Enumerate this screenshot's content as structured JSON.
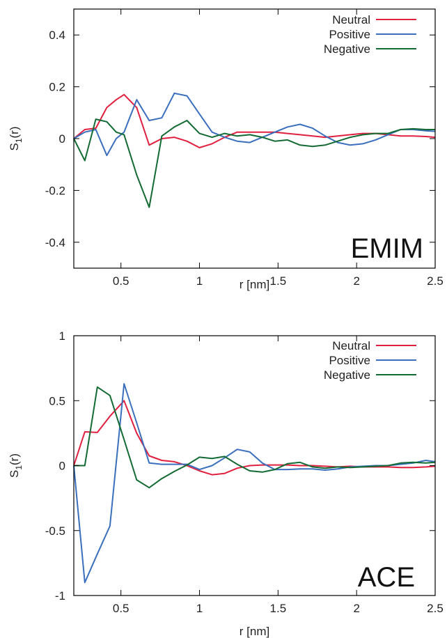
{
  "chart_data": [
    {
      "type": "line",
      "panel_label": "EMIM",
      "xlabel": "r [nm]",
      "ylabel_main": "S",
      "ylabel_sub": "1",
      "ylabel_tail": "(r)",
      "xlim": [
        0.2,
        2.5
      ],
      "ylim": [
        -0.5,
        0.5
      ],
      "xticks": [
        0.5,
        1,
        1.5,
        2,
        2.5
      ],
      "xtick_labels": [
        "0.5",
        "1",
        "1.5",
        "2",
        "2.5"
      ],
      "yticks": [
        -0.4,
        -0.2,
        0,
        0.2,
        0.4
      ],
      "ytick_labels": [
        "-0.4",
        "-0.2",
        "0",
        "0.2",
        "0.4"
      ],
      "legend_position": "top-right",
      "series": [
        {
          "name": "Neutral",
          "color": "#e0203f",
          "x": [
            0.2,
            0.27,
            0.34,
            0.41,
            0.47,
            0.52,
            0.6,
            0.68,
            0.76,
            0.84,
            0.92,
            1.0,
            1.08,
            1.16,
            1.24,
            1.32,
            1.4,
            1.48,
            1.56,
            1.64,
            1.72,
            1.8,
            1.88,
            1.96,
            2.04,
            2.12,
            2.2,
            2.28,
            2.36,
            2.44,
            2.5
          ],
          "y": [
            0.0,
            0.035,
            0.04,
            0.12,
            0.15,
            0.17,
            0.12,
            -0.025,
            0.0,
            0.005,
            -0.01,
            -0.035,
            -0.02,
            0.005,
            0.025,
            0.025,
            0.025,
            0.025,
            0.02,
            0.015,
            0.01,
            0.005,
            0.01,
            0.015,
            0.02,
            0.02,
            0.015,
            0.01,
            0.01,
            0.008,
            0.005
          ]
        },
        {
          "name": "Positive",
          "color": "#3a6fbd",
          "x": [
            0.2,
            0.27,
            0.34,
            0.41,
            0.47,
            0.52,
            0.6,
            0.68,
            0.76,
            0.84,
            0.92,
            1.0,
            1.08,
            1.16,
            1.24,
            1.32,
            1.4,
            1.48,
            1.56,
            1.64,
            1.72,
            1.8,
            1.88,
            1.96,
            2.04,
            2.12,
            2.2,
            2.28,
            2.36,
            2.44,
            2.5
          ],
          "y": [
            0.0,
            0.025,
            0.035,
            -0.065,
            0.0,
            0.025,
            0.15,
            0.07,
            0.08,
            0.175,
            0.165,
            0.095,
            0.025,
            0.005,
            -0.01,
            -0.015,
            0.005,
            0.025,
            0.045,
            0.055,
            0.04,
            0.01,
            -0.015,
            -0.025,
            -0.02,
            -0.005,
            0.015,
            0.035,
            0.035,
            0.03,
            0.028
          ]
        },
        {
          "name": "Negative",
          "color": "#136b33",
          "x": [
            0.2,
            0.27,
            0.34,
            0.41,
            0.47,
            0.52,
            0.6,
            0.68,
            0.76,
            0.84,
            0.92,
            1.0,
            1.08,
            1.16,
            1.24,
            1.32,
            1.4,
            1.48,
            1.56,
            1.64,
            1.72,
            1.8,
            1.88,
            1.96,
            2.04,
            2.12,
            2.2,
            2.28,
            2.36,
            2.44,
            2.5
          ],
          "y": [
            0.0,
            -0.085,
            0.075,
            0.065,
            0.025,
            0.015,
            -0.14,
            -0.265,
            0.01,
            0.045,
            0.07,
            0.02,
            0.005,
            0.02,
            0.01,
            0.015,
            0.005,
            -0.01,
            -0.005,
            -0.025,
            -0.03,
            -0.025,
            -0.01,
            0.005,
            0.015,
            0.02,
            0.02,
            0.035,
            0.038,
            0.035,
            0.035
          ]
        }
      ]
    },
    {
      "type": "line",
      "panel_label": "ACE",
      "xlabel": "r [nm]",
      "ylabel_main": "S",
      "ylabel_sub": "1",
      "ylabel_tail": "(r)",
      "xlim": [
        0.2,
        2.5
      ],
      "ylim": [
        -1,
        1
      ],
      "xticks": [
        0.5,
        1,
        1.5,
        2,
        2.5
      ],
      "xtick_labels": [
        "0.5",
        "1",
        "1.5",
        "2",
        "2.5"
      ],
      "yticks": [
        -1,
        -0.5,
        0,
        0.5,
        1
      ],
      "ytick_labels": [
        "-1",
        "-0.5",
        "0",
        "0.5",
        "1"
      ],
      "legend_position": "top-right",
      "series": [
        {
          "name": "Neutral",
          "color": "#e0203f",
          "x": [
            0.2,
            0.27,
            0.35,
            0.43,
            0.52,
            0.6,
            0.68,
            0.76,
            0.84,
            0.92,
            1.0,
            1.08,
            1.16,
            1.24,
            1.32,
            1.4,
            1.48,
            1.56,
            1.64,
            1.72,
            1.8,
            1.88,
            1.96,
            2.04,
            2.12,
            2.2,
            2.28,
            2.36,
            2.44,
            2.5
          ],
          "y": [
            0.0,
            0.26,
            0.255,
            0.38,
            0.5,
            0.25,
            0.075,
            0.04,
            0.03,
            0.0,
            -0.04,
            -0.07,
            -0.06,
            -0.02,
            0.0,
            0.005,
            0.005,
            0.005,
            0.0,
            0.0,
            -0.005,
            -0.01,
            -0.005,
            -0.01,
            -0.01,
            -0.01,
            -0.015,
            -0.015,
            -0.01,
            -0.005
          ]
        },
        {
          "name": "Positive",
          "color": "#3a6fbd",
          "x": [
            0.2,
            0.27,
            0.35,
            0.43,
            0.52,
            0.6,
            0.68,
            0.76,
            0.84,
            0.92,
            1.0,
            1.08,
            1.16,
            1.24,
            1.32,
            1.4,
            1.48,
            1.56,
            1.64,
            1.72,
            1.8,
            1.88,
            1.96,
            2.04,
            2.12,
            2.2,
            2.28,
            2.36,
            2.44,
            2.5
          ],
          "y": [
            0.0,
            -0.9,
            -0.68,
            -0.465,
            0.63,
            0.33,
            0.02,
            0.01,
            0.01,
            0.01,
            -0.03,
            0.0,
            0.06,
            0.125,
            0.105,
            0.02,
            -0.03,
            -0.03,
            -0.025,
            -0.025,
            -0.035,
            -0.025,
            -0.01,
            -0.005,
            0.0,
            0.0,
            0.01,
            0.02,
            0.04,
            0.03
          ]
        },
        {
          "name": "Negative",
          "color": "#136b33",
          "x": [
            0.2,
            0.27,
            0.35,
            0.43,
            0.52,
            0.6,
            0.68,
            0.76,
            0.84,
            0.92,
            1.0,
            1.08,
            1.16,
            1.24,
            1.32,
            1.4,
            1.48,
            1.56,
            1.64,
            1.72,
            1.8,
            1.88,
            1.96,
            2.04,
            2.12,
            2.2,
            2.28,
            2.36,
            2.44,
            2.5
          ],
          "y": [
            0.0,
            0.0,
            0.605,
            0.54,
            0.2,
            -0.11,
            -0.17,
            -0.1,
            -0.045,
            0.005,
            0.065,
            0.055,
            0.07,
            0.01,
            -0.04,
            -0.05,
            -0.03,
            0.015,
            0.025,
            -0.01,
            -0.02,
            -0.01,
            -0.015,
            -0.01,
            -0.005,
            0.0,
            0.02,
            0.025,
            0.02,
            0.025
          ]
        }
      ]
    }
  ]
}
